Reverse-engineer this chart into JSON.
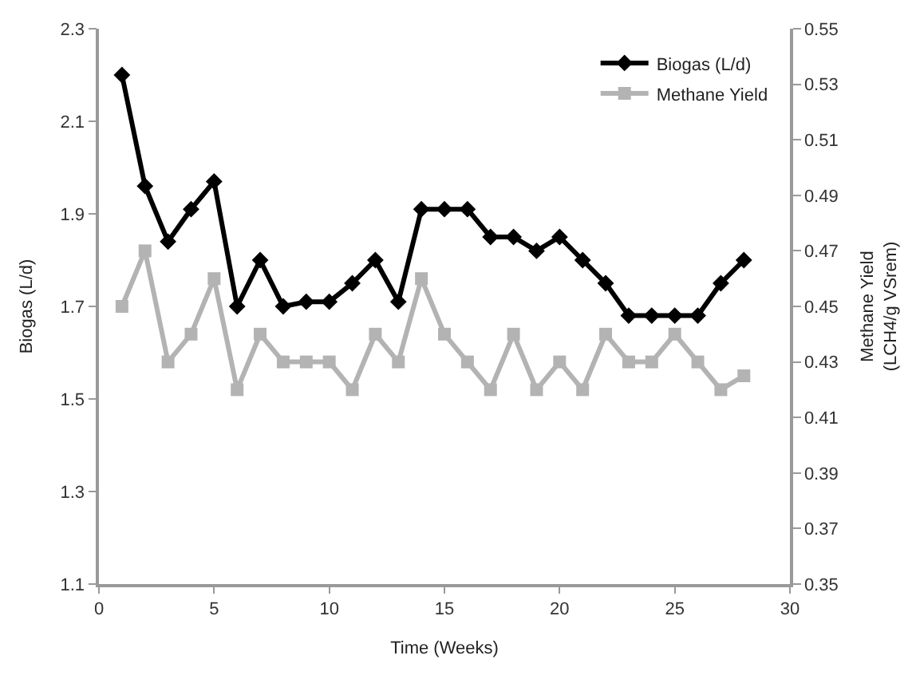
{
  "chart_data": {
    "type": "line",
    "xlabel": "Time (Weeks)",
    "ylabel": "Biogas (L/d)",
    "y2label": "Methane Yield\n(LCH4/g VSrem)",
    "x": [
      1,
      2,
      3,
      4,
      5,
      6,
      7,
      8,
      9,
      10,
      11,
      12,
      13,
      14,
      15,
      16,
      17,
      18,
      19,
      20,
      21,
      22,
      23,
      24,
      25,
      26,
      27,
      28
    ],
    "series": [
      {
        "name": "Biogas (L/d)",
        "color": "#000000",
        "marker": "diamond",
        "values": [
          2.2,
          1.96,
          1.84,
          1.91,
          1.97,
          1.7,
          1.8,
          1.7,
          1.71,
          1.71,
          1.75,
          1.8,
          1.71,
          1.91,
          1.91,
          1.91,
          1.85,
          1.85,
          1.82,
          1.85,
          1.8,
          1.75,
          1.68,
          1.68,
          1.68,
          1.68,
          1.75,
          1.8
        ]
      },
      {
        "name": "Methane Yield",
        "color": "#b3b3b3",
        "marker": "square",
        "axis": "y2",
        "values": [
          0.45,
          0.47,
          0.43,
          0.44,
          0.46,
          0.42,
          0.44,
          0.43,
          0.43,
          0.43,
          0.42,
          0.44,
          0.43,
          0.46,
          0.44,
          0.43,
          0.42,
          0.44,
          0.42,
          0.43,
          0.42,
          0.44,
          0.43,
          0.43,
          0.44,
          0.43,
          0.42,
          0.425
        ]
      }
    ],
    "xlim": [
      0,
      30
    ],
    "xticks": [
      0,
      5,
      10,
      15,
      20,
      25,
      30
    ],
    "ylim": [
      1.1,
      2.3
    ],
    "yticks": [
      1.1,
      1.3,
      1.5,
      1.7,
      1.9,
      2.1,
      2.3
    ],
    "y2lim": [
      0.35,
      0.55
    ],
    "y2ticks": [
      0.35,
      0.37,
      0.39,
      0.41,
      0.43,
      0.45,
      0.47,
      0.49,
      0.51,
      0.53,
      0.55
    ],
    "legend": "top right",
    "line_style": "solid"
  }
}
